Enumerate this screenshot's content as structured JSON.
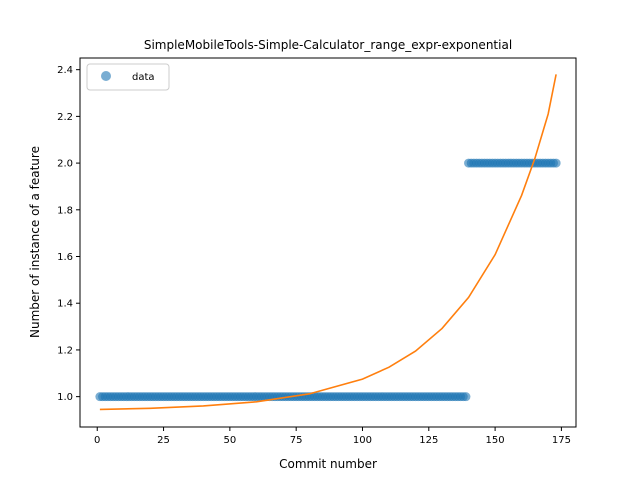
{
  "chart_data": {
    "type": "scatter",
    "title": "SimpleMobileTools-Simple-Calculator_range_expr-exponential",
    "xlabel": "Commit number",
    "ylabel": "Number of instance of a feature",
    "xlim": [
      -6.5,
      180.5
    ],
    "ylim": [
      0.87,
      2.45
    ],
    "xticks": [
      0,
      25,
      50,
      75,
      100,
      125,
      150,
      175
    ],
    "yticks": [
      1.0,
      1.2,
      1.4,
      1.6,
      1.8,
      2.0,
      2.2,
      2.4
    ],
    "grid": false,
    "legend_position": "top-left",
    "series": [
      {
        "name": "data",
        "kind": "scatter",
        "color": "#1f77b4",
        "segments": [
          {
            "x_start": 1,
            "x_end": 139,
            "y": 1.0
          },
          {
            "x_start": 140,
            "x_end": 173,
            "y": 2.0
          }
        ]
      },
      {
        "kind": "line",
        "color": "#ff7f0e",
        "fit": "exponential",
        "x": [
          1,
          20,
          40,
          60,
          80,
          100,
          110,
          120,
          130,
          140,
          150,
          160,
          165,
          170,
          173
        ],
        "y": [
          0.945,
          0.95,
          0.96,
          0.978,
          1.012,
          1.075,
          1.126,
          1.195,
          1.292,
          1.425,
          1.608,
          1.862,
          2.02,
          2.21,
          2.38
        ]
      }
    ]
  }
}
